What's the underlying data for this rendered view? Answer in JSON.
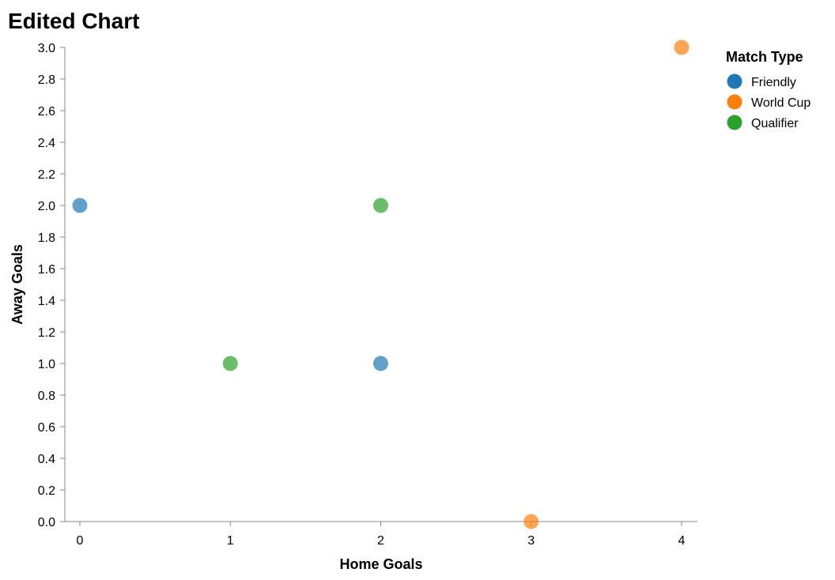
{
  "chart_data": {
    "type": "scatter",
    "title": "Edited Chart",
    "xlabel": "Home Goals",
    "ylabel": "Away Goals",
    "xlim": [
      0,
      4
    ],
    "ylim": [
      0,
      3
    ],
    "x_ticks": [
      "0",
      "1",
      "2",
      "3",
      "4"
    ],
    "y_ticks": [
      "0.0",
      "0.2",
      "0.4",
      "0.6",
      "0.8",
      "1.0",
      "1.2",
      "1.4",
      "1.6",
      "1.8",
      "2.0",
      "2.2",
      "2.4",
      "2.6",
      "2.8",
      "3.0"
    ],
    "grid": false,
    "legend": {
      "title": "Match Type",
      "placement": "right"
    },
    "series": [
      {
        "name": "Friendly",
        "color": "#1f77b4",
        "points": [
          {
            "x": 0,
            "y": 2
          },
          {
            "x": 2,
            "y": 1
          }
        ]
      },
      {
        "name": "World Cup",
        "color": "#ff7f0e",
        "points": [
          {
            "x": 4,
            "y": 3
          },
          {
            "x": 3,
            "y": 0
          }
        ]
      },
      {
        "name": "Qualifier",
        "color": "#2ca02c",
        "points": [
          {
            "x": 2,
            "y": 2
          },
          {
            "x": 1,
            "y": 1
          }
        ]
      }
    ]
  }
}
